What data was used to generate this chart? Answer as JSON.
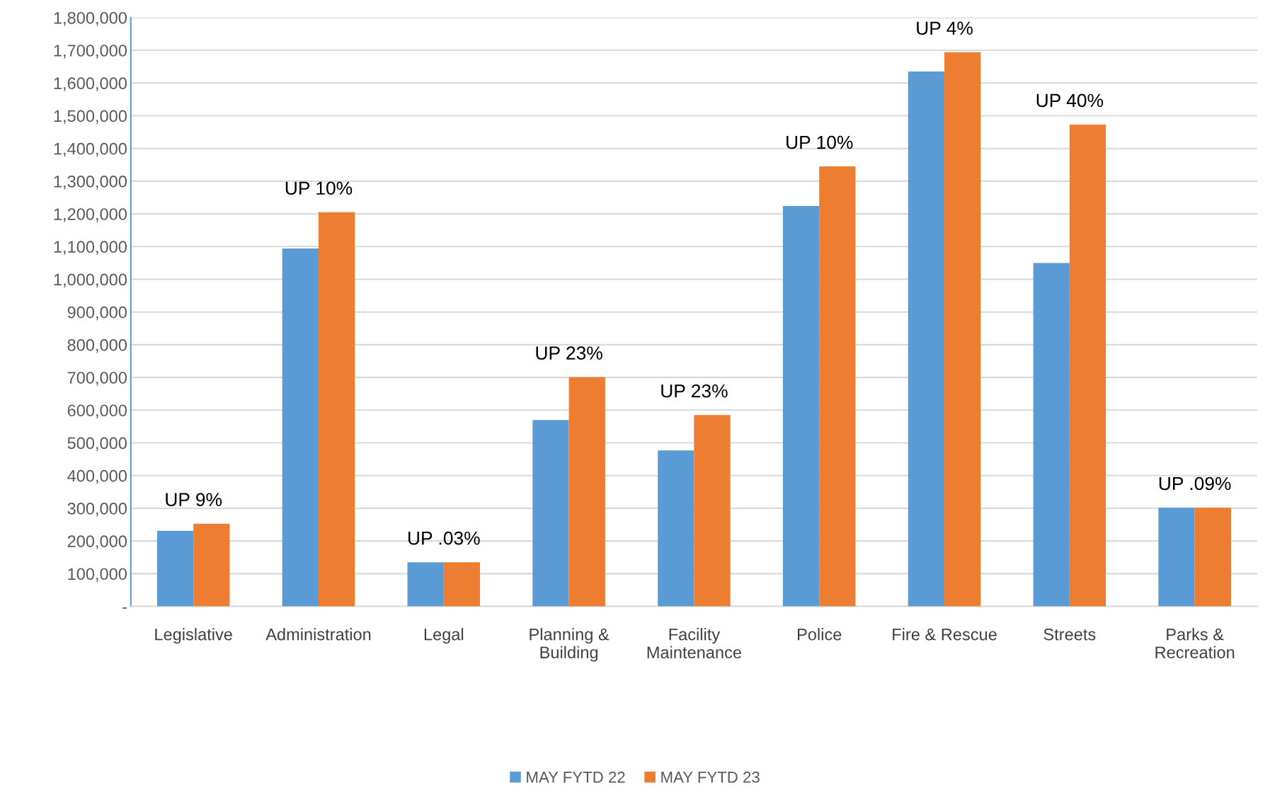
{
  "chart_data": {
    "type": "bar",
    "categories": [
      "Legislative",
      "Administration",
      "Legal",
      "Planning &\nBuilding",
      "Facility\nMaintenance",
      "Police",
      "Fire & Rescue",
      "Streets",
      "Parks &\nRecreation"
    ],
    "series": [
      {
        "name": "MAY FYTD 22",
        "color": "#5b9bd5",
        "values": [
          231000,
          1094000,
          135000,
          570000,
          477000,
          1224000,
          1635000,
          1050000,
          302000
        ]
      },
      {
        "name": "MAY FYTD 23",
        "color": "#ed7d31",
        "values": [
          253000,
          1205000,
          135000,
          701000,
          585000,
          1345000,
          1694000,
          1473000,
          302000
        ]
      }
    ],
    "ylim": [
      0,
      1800000
    ],
    "yticks": [
      {
        "value": 0,
        "label": "-"
      },
      {
        "value": 100000,
        "label": "100,000"
      },
      {
        "value": 200000,
        "label": "200,000"
      },
      {
        "value": 300000,
        "label": "300,000"
      },
      {
        "value": 400000,
        "label": "400,000"
      },
      {
        "value": 500000,
        "label": "500,000"
      },
      {
        "value": 600000,
        "label": "600,000"
      },
      {
        "value": 700000,
        "label": "700,000"
      },
      {
        "value": 800000,
        "label": "800,000"
      },
      {
        "value": 900000,
        "label": "900,000"
      },
      {
        "value": 1000000,
        "label": "1,000,000"
      },
      {
        "value": 1100000,
        "label": "1,100,000"
      },
      {
        "value": 1200000,
        "label": "1,200,000"
      },
      {
        "value": 1300000,
        "label": "1,300,000"
      },
      {
        "value": 1400000,
        "label": "1,400,000"
      },
      {
        "value": 1500000,
        "label": "1,500,000"
      },
      {
        "value": 1600000,
        "label": "1,600,000"
      },
      {
        "value": 1700000,
        "label": "1,700,000"
      },
      {
        "value": 1800000,
        "label": "1,800,000"
      }
    ],
    "annotations": [
      "UP 9%",
      "UP 10%",
      "UP .03%",
      "UP 23%",
      "UP 23%",
      "UP 10%",
      "UP 4%",
      "UP 40%",
      "UP .09%"
    ],
    "grid": "y",
    "legend": "bottom"
  }
}
